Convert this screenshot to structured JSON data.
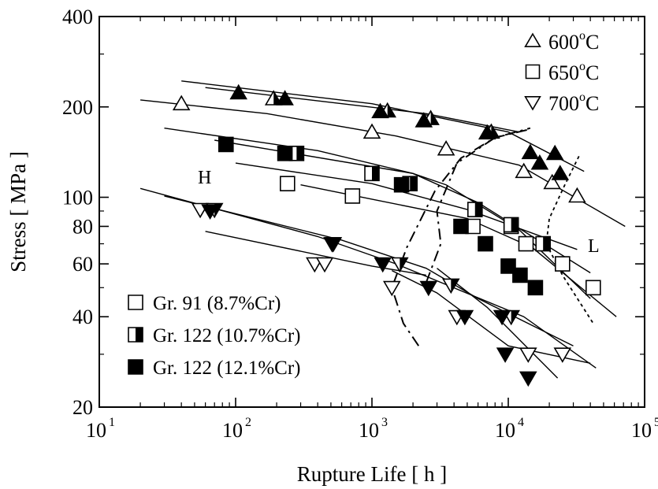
{
  "chart_data": {
    "type": "scatter",
    "title": "",
    "xlabel": "Rupture Life [ h ]",
    "ylabel": "Stress [ MPa ]",
    "xscale": "log",
    "yscale": "log",
    "xlim": [
      10,
      100000
    ],
    "ylim": [
      20,
      400
    ],
    "x_ticks": [
      10,
      100,
      1000,
      10000,
      100000
    ],
    "x_tick_labels": [
      {
        "base": "10",
        "exp": "1"
      },
      {
        "base": "10",
        "exp": "2"
      },
      {
        "base": "10",
        "exp": "3"
      },
      {
        "base": "10",
        "exp": "4"
      },
      {
        "base": "10",
        "exp": "5"
      }
    ],
    "y_ticks": [
      20,
      40,
      60,
      80,
      100,
      200,
      400
    ],
    "y_tick_labels": [
      "20",
      "40",
      "60",
      "80",
      "100",
      "200",
      "400"
    ],
    "grid": false,
    "legend_temperature": {
      "placement": "top-right",
      "entries": [
        {
          "marker": "triangle-up",
          "label": "600",
          "sup": "o",
          "unit": "C"
        },
        {
          "marker": "square",
          "label": "650",
          "sup": "o",
          "unit": "C"
        },
        {
          "marker": "triangle-down",
          "label": "700",
          "sup": "o",
          "unit": "C"
        }
      ]
    },
    "legend_material": {
      "placement": "bottom-left",
      "entries": [
        {
          "fill": "open",
          "label": "Gr. 91 (8.7%Cr)"
        },
        {
          "fill": "half",
          "label": "Gr. 122 (10.7%Cr)"
        },
        {
          "fill": "solid",
          "label": "Gr. 122 (12.1%Cr)"
        }
      ]
    },
    "annotations": [
      "H",
      "L"
    ],
    "series": [
      {
        "marker": "triangle-up",
        "fill": "open",
        "points": [
          [
            40,
            205
          ],
          [
            1000,
            165
          ],
          [
            3500,
            145
          ],
          [
            13000,
            122
          ],
          [
            21000,
            112
          ],
          [
            32000,
            101
          ]
        ]
      },
      {
        "marker": "triangle-up",
        "fill": "half",
        "points": [
          [
            190,
            213
          ],
          [
            1300,
            194
          ],
          [
            2700,
            183
          ],
          [
            7500,
            165
          ]
        ]
      },
      {
        "marker": "triangle-up",
        "fill": "solid",
        "points": [
          [
            105,
            223
          ],
          [
            230,
            213
          ],
          [
            1150,
            193
          ],
          [
            2400,
            180
          ],
          [
            7000,
            164
          ],
          [
            14500,
            141
          ],
          [
            22000,
            140
          ],
          [
            17000,
            130
          ],
          [
            24000,
            120
          ]
        ]
      },
      {
        "marker": "square",
        "fill": "open",
        "points": [
          [
            240,
            111
          ],
          [
            720,
            101
          ],
          [
            5500,
            80
          ],
          [
            10500,
            80
          ],
          [
            13500,
            70
          ],
          [
            25000,
            60
          ],
          [
            42000,
            50
          ]
        ]
      },
      {
        "marker": "square",
        "fill": "half",
        "points": [
          [
            280,
            140
          ],
          [
            1000,
            120
          ],
          [
            1900,
            111
          ],
          [
            5700,
            91
          ],
          [
            10500,
            81
          ],
          [
            18000,
            70
          ]
        ]
      },
      {
        "marker": "square",
        "fill": "solid",
        "points": [
          [
            85,
            150
          ],
          [
            230,
            140
          ],
          [
            1650,
            110
          ],
          [
            4500,
            80
          ],
          [
            6800,
            70
          ],
          [
            10000,
            59
          ],
          [
            12200,
            55
          ],
          [
            15800,
            50
          ]
        ]
      },
      {
        "marker": "triangle-down",
        "fill": "open",
        "points": [
          [
            55,
            91
          ],
          [
            380,
            60
          ],
          [
            450,
            60
          ],
          [
            1400,
            50
          ],
          [
            4200,
            40
          ],
          [
            14000,
            30
          ],
          [
            25000,
            30
          ]
        ]
      },
      {
        "marker": "triangle-down",
        "fill": "half",
        "points": [
          [
            70,
            91
          ],
          [
            510,
            70
          ],
          [
            1600,
            60
          ],
          [
            3800,
            51
          ],
          [
            10500,
            40
          ]
        ]
      },
      {
        "marker": "triangle-down",
        "fill": "solid",
        "points": [
          [
            65,
            90
          ],
          [
            520,
            70
          ],
          [
            1200,
            60
          ],
          [
            2600,
            50
          ],
          [
            4800,
            40
          ],
          [
            9000,
            40
          ],
          [
            9500,
            30
          ],
          [
            14000,
            25
          ]
        ]
      }
    ],
    "fit_lines": [
      [
        [
          40,
          244
        ],
        [
          1000,
          205
        ],
        [
          10000,
          165
        ],
        [
          36000,
          122
        ]
      ],
      [
        [
          20,
          211
        ],
        [
          170,
          190
        ],
        [
          1500,
          160
        ],
        [
          12000,
          128
        ],
        [
          72000,
          80
        ]
      ],
      [
        [
          60,
          232
        ],
        [
          2500,
          190
        ],
        [
          12000,
          165
        ]
      ],
      [
        [
          30,
          170
        ],
        [
          400,
          143
        ],
        [
          2000,
          120
        ],
        [
          6000,
          96
        ],
        [
          40000,
          56
        ]
      ],
      [
        [
          70,
          155
        ],
        [
          2000,
          120
        ],
        [
          3500,
          110
        ],
        [
          12000,
          78
        ],
        [
          40000,
          46
        ]
      ],
      [
        [
          100,
          130
        ],
        [
          1000,
          111
        ],
        [
          5000,
          91
        ],
        [
          32000,
          67
        ]
      ],
      [
        [
          300,
          110
        ],
        [
          5000,
          85
        ],
        [
          15000,
          68
        ],
        [
          62000,
          40
        ]
      ],
      [
        [
          20,
          107
        ],
        [
          400,
          74
        ],
        [
          1500,
          60
        ],
        [
          13000,
          40
        ],
        [
          44000,
          27
        ]
      ],
      [
        [
          30,
          101
        ],
        [
          600,
          72
        ],
        [
          2500,
          58
        ],
        [
          6000,
          46
        ],
        [
          30000,
          32
        ]
      ],
      [
        [
          60,
          77
        ],
        [
          1000,
          59
        ],
        [
          2500,
          55
        ]
      ],
      [
        [
          3000,
          58
        ],
        [
          7000,
          43
        ],
        [
          23000,
          25
        ]
      ],
      [
        [
          1400,
          57
        ],
        [
          3000,
          48
        ],
        [
          10000,
          32
        ],
        [
          40000,
          28
        ]
      ]
    ],
    "dashed_lines": [
      [
        [
          2200,
          32
        ],
        [
          1700,
          38
        ],
        [
          1400,
          50
        ],
        [
          1800,
          68
        ],
        [
          2900,
          105
        ],
        [
          4500,
          135
        ],
        [
          8000,
          158
        ],
        [
          14000,
          168
        ]
      ],
      [
        [
          2500,
          52
        ],
        [
          3200,
          70
        ],
        [
          3000,
          90
        ],
        [
          4200,
          130
        ],
        [
          8000,
          158
        ],
        [
          14500,
          170
        ]
      ]
    ],
    "dotted_lines": [
      [
        [
          33000,
          137
        ],
        [
          26000,
          110
        ],
        [
          20000,
          85
        ],
        [
          19000,
          70
        ],
        [
          25000,
          55
        ],
        [
          42000,
          38
        ]
      ]
    ]
  }
}
